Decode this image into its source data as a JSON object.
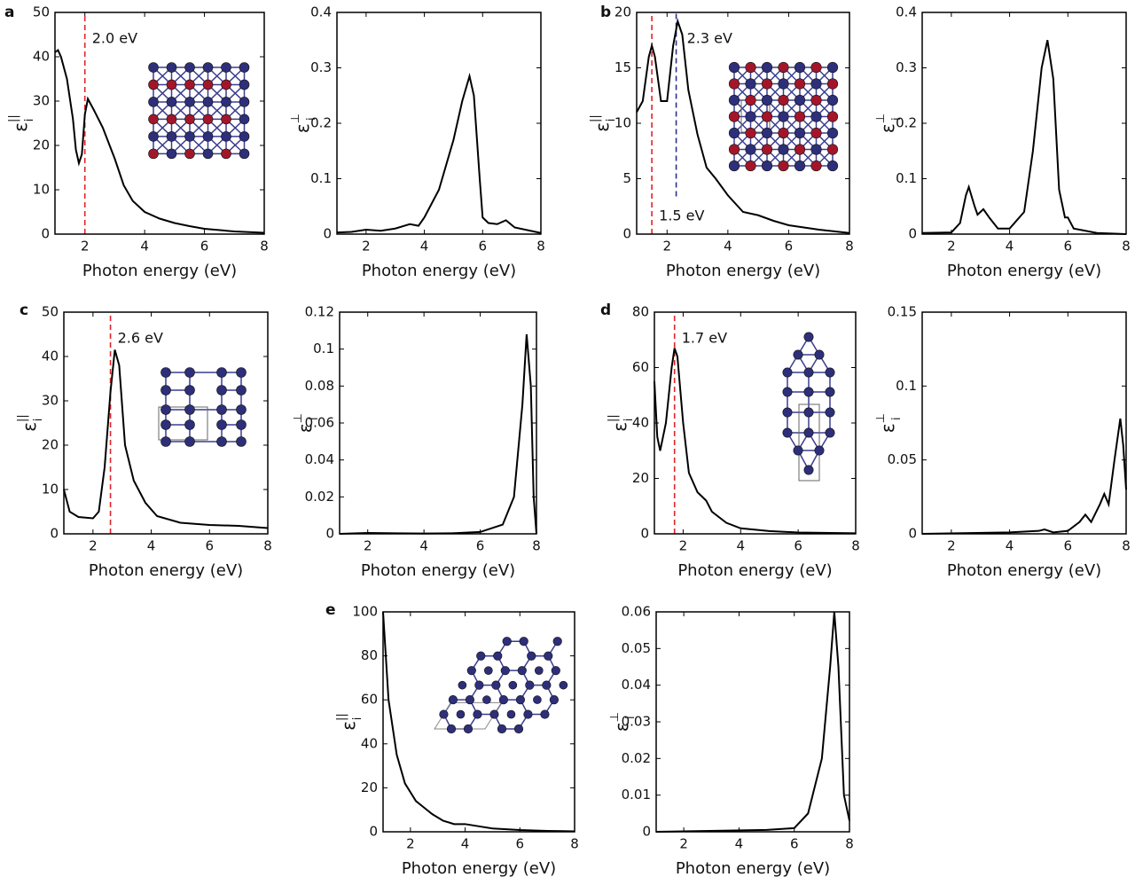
{
  "chart_data": [
    {
      "type": "line",
      "panel": "a",
      "y_label": {
        "base": "ε",
        "sup": "||",
        "sub": "i"
      },
      "x_label": "Photon energy (eV)",
      "x": [
        1,
        1.1,
        1.2,
        1.4,
        1.6,
        1.7,
        1.8,
        1.9,
        2.0,
        2.1,
        2.3,
        2.6,
        3.0,
        3.3,
        3.6,
        4.0,
        4.5,
        5.0,
        5.5,
        6.0,
        7.0,
        8.0
      ],
      "values": [
        41,
        41.5,
        40,
        35,
        26,
        19,
        16,
        18,
        27,
        30.5,
        28,
        24,
        17,
        11,
        7.5,
        5,
        3.5,
        2.5,
        1.8,
        1.2,
        0.6,
        0.3
      ],
      "color": "#000000",
      "xlim": [
        1,
        8
      ],
      "xticks": [
        2,
        4,
        6,
        8
      ],
      "ylim": [
        0,
        50
      ],
      "yticks": [
        0,
        10,
        20,
        30,
        40,
        50
      ],
      "annotations": [
        {
          "text": "2.0 eV",
          "x": 2.0,
          "color": "#e0242a"
        }
      ]
    },
    {
      "type": "line",
      "y_label": {
        "base": "ε",
        "sup": "⊥",
        "sub": "i"
      },
      "x_label": "Photon energy (eV)",
      "x": [
        1,
        1.5,
        2,
        2.5,
        3,
        3.5,
        3.8,
        4,
        4.5,
        5,
        5.3,
        5.55,
        5.7,
        5.9,
        6.0,
        6.2,
        6.5,
        6.8,
        7.1,
        8
      ],
      "values": [
        0.003,
        0.004,
        0.008,
        0.006,
        0.01,
        0.018,
        0.015,
        0.03,
        0.08,
        0.17,
        0.24,
        0.285,
        0.25,
        0.1,
        0.03,
        0.02,
        0.018,
        0.025,
        0.012,
        0.002
      ],
      "color": "#000000",
      "xlim": [
        1,
        8
      ],
      "xticks": [
        2,
        4,
        6,
        8
      ],
      "ylim": [
        0,
        0.4
      ],
      "yticks": [
        0,
        0.1,
        0.2,
        0.3,
        0.4
      ],
      "annotations": []
    },
    {
      "type": "line",
      "panel": "b",
      "y_label": {
        "base": "ε",
        "sup": "||",
        "sub": "i"
      },
      "x_label": "Photon energy (eV)",
      "x": [
        1,
        1.2,
        1.4,
        1.5,
        1.6,
        1.8,
        2.0,
        2.2,
        2.35,
        2.5,
        2.7,
        3.0,
        3.3,
        3.6,
        4.0,
        4.5,
        5,
        5.5,
        6,
        7,
        8
      ],
      "values": [
        11,
        12,
        16,
        17,
        16,
        12,
        12,
        17,
        19.2,
        18,
        13,
        9,
        6,
        5,
        3.5,
        2,
        1.7,
        1.2,
        0.8,
        0.4,
        0.1
      ],
      "color": "#000000",
      "xlim": [
        1,
        8
      ],
      "xticks": [
        2,
        4,
        6,
        8
      ],
      "ylim": [
        0,
        20
      ],
      "yticks": [
        0,
        5,
        10,
        15,
        20
      ],
      "annotations": [
        {
          "text": "1.5 eV",
          "x": 1.5,
          "color": "#e0242a"
        },
        {
          "text": "2.3 eV",
          "x": 2.3,
          "color": "#2b2f8c"
        }
      ]
    },
    {
      "type": "line",
      "y_label": {
        "base": "ε",
        "sup": "⊥",
        "sub": "i"
      },
      "x_label": "Photon energy (eV)",
      "x": [
        1,
        2,
        2.3,
        2.5,
        2.6,
        2.8,
        2.9,
        3.1,
        3.3,
        3.6,
        4,
        4.5,
        4.8,
        5.1,
        5.3,
        5.5,
        5.7,
        5.9,
        6.0,
        6.2,
        7,
        8
      ],
      "values": [
        0.002,
        0.003,
        0.02,
        0.07,
        0.085,
        0.05,
        0.035,
        0.045,
        0.03,
        0.01,
        0.01,
        0.04,
        0.15,
        0.3,
        0.35,
        0.28,
        0.08,
        0.03,
        0.03,
        0.01,
        0.002,
        0
      ],
      "color": "#000000",
      "xlim": [
        1,
        8
      ],
      "xticks": [
        2,
        4,
        6,
        8
      ],
      "ylim": [
        0,
        0.4
      ],
      "yticks": [
        0,
        0.1,
        0.2,
        0.3,
        0.4
      ],
      "annotations": []
    },
    {
      "type": "line",
      "panel": "c",
      "y_label": {
        "base": "ε",
        "sup": "||",
        "sub": "i"
      },
      "x_label": "Photon energy (eV)",
      "x": [
        1,
        1.2,
        1.5,
        2,
        2.2,
        2.4,
        2.6,
        2.75,
        2.9,
        3.1,
        3.4,
        3.8,
        4.2,
        5,
        6,
        7,
        8
      ],
      "values": [
        10,
        5,
        3.8,
        3.5,
        5,
        15,
        32,
        41.5,
        38,
        20,
        12,
        7,
        4,
        2.5,
        2,
        1.8,
        1.3
      ],
      "color": "#000000",
      "xlim": [
        1,
        8
      ],
      "xticks": [
        2,
        4,
        6,
        8
      ],
      "ylim": [
        0,
        50
      ],
      "yticks": [
        0,
        10,
        20,
        30,
        40,
        50
      ],
      "annotations": [
        {
          "text": "2.6 eV",
          "x": 2.6,
          "color": "#e0242a"
        }
      ]
    },
    {
      "type": "line",
      "y_label": {
        "base": "ε",
        "sup": "⊥",
        "sub": "i"
      },
      "x_label": "Photon energy (eV)",
      "x": [
        1,
        2,
        3,
        4,
        5,
        6,
        6.8,
        7.2,
        7.5,
        7.65,
        7.8,
        7.9,
        8
      ],
      "values": [
        0,
        0.0005,
        0.0003,
        0.0002,
        0.0003,
        0.001,
        0.005,
        0.02,
        0.07,
        0.108,
        0.08,
        0.02,
        0
      ],
      "color": "#000000",
      "xlim": [
        1,
        8
      ],
      "xticks": [
        2,
        4,
        6,
        8
      ],
      "ylim": [
        0,
        0.12
      ],
      "yticks": [
        0,
        0.02,
        0.04,
        0.06,
        0.08,
        0.1,
        0.12
      ],
      "annotations": []
    },
    {
      "type": "line",
      "panel": "d",
      "y_label": {
        "base": "ε",
        "sup": "||",
        "sub": "i"
      },
      "x_label": "Photon energy (eV)",
      "x": [
        1,
        1.1,
        1.2,
        1.4,
        1.6,
        1.7,
        1.8,
        2.0,
        2.2,
        2.5,
        2.8,
        3.0,
        3.5,
        4,
        5,
        6,
        8
      ],
      "values": [
        55,
        35,
        30,
        40,
        60,
        67,
        64,
        40,
        22,
        15,
        12,
        8,
        4,
        2,
        1,
        0.5,
        0.2
      ],
      "color": "#000000",
      "xlim": [
        1,
        8
      ],
      "xticks": [
        2,
        4,
        6,
        8
      ],
      "ylim": [
        0,
        80
      ],
      "yticks": [
        0,
        20,
        40,
        60,
        80
      ],
      "annotations": [
        {
          "text": "1.7 eV",
          "x": 1.7,
          "color": "#e0242a"
        }
      ]
    },
    {
      "type": "line",
      "y_label": {
        "base": "ε",
        "sup": "⊥",
        "sub": "i"
      },
      "x_label": "Photon energy (eV)",
      "x": [
        1,
        4,
        5,
        5.2,
        5.5,
        6,
        6.4,
        6.6,
        6.8,
        7.1,
        7.25,
        7.4,
        7.6,
        7.8,
        7.9,
        8
      ],
      "values": [
        0,
        0.001,
        0.002,
        0.003,
        0.001,
        0.002,
        0.008,
        0.013,
        0.008,
        0.02,
        0.027,
        0.02,
        0.05,
        0.078,
        0.06,
        0.03
      ],
      "color": "#000000",
      "xlim": [
        1,
        8
      ],
      "xticks": [
        2,
        4,
        6,
        8
      ],
      "ylim": [
        0,
        0.15
      ],
      "yticks": [
        0,
        0.05,
        0.1,
        0.15
      ],
      "annotations": []
    },
    {
      "type": "line",
      "panel": "e",
      "y_label": {
        "base": "ε",
        "sup": "||",
        "sub": "i"
      },
      "x_label": "Photon energy (eV)",
      "x": [
        1,
        1.2,
        1.5,
        1.8,
        2.2,
        2.5,
        2.8,
        3.2,
        3.6,
        4.0,
        4.5,
        5,
        6,
        7,
        8
      ],
      "values": [
        100,
        60,
        35,
        22,
        14,
        11,
        8,
        5,
        3.5,
        3.5,
        2.5,
        1.5,
        0.8,
        0.4,
        0.2
      ],
      "color": "#000000",
      "xlim": [
        1,
        8
      ],
      "xticks": [
        2,
        4,
        6,
        8
      ],
      "ylim": [
        0,
        100
      ],
      "yticks": [
        0,
        20,
        40,
        60,
        80,
        100
      ],
      "annotations": []
    },
    {
      "type": "line",
      "y_label": {
        "base": "ε",
        "sup": "⊥",
        "sub": "i"
      },
      "x_label": "Photon energy (eV)",
      "x": [
        1,
        3.4,
        5,
        6,
        6.5,
        7,
        7.3,
        7.45,
        7.6,
        7.8,
        8
      ],
      "values": [
        0,
        0.0003,
        0.0005,
        0.001,
        0.005,
        0.02,
        0.045,
        0.06,
        0.045,
        0.01,
        0.003
      ],
      "color": "#000000",
      "xlim": [
        1,
        8
      ],
      "xticks": [
        2,
        4,
        6,
        8
      ],
      "ylim": [
        0,
        0.06
      ],
      "yticks": [
        0,
        0.01,
        0.02,
        0.03,
        0.04,
        0.05,
        0.06
      ],
      "annotations": []
    }
  ]
}
